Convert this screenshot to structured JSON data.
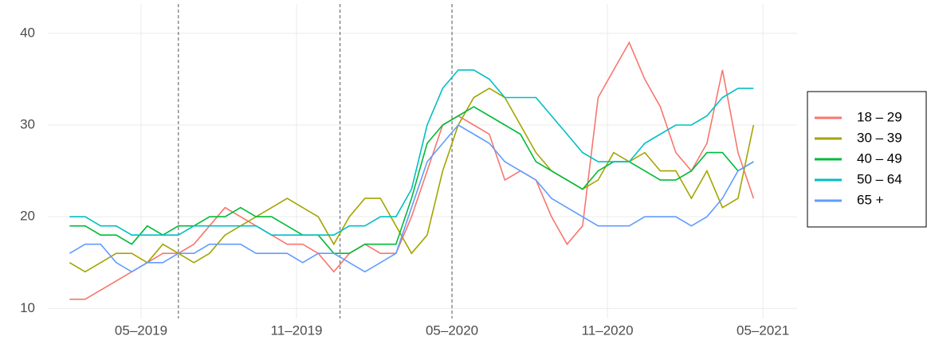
{
  "chart_data": {
    "type": "line",
    "x": [
      2019.1,
      2019.15,
      2019.2,
      2019.25,
      2019.3,
      2019.35,
      2019.4,
      2019.45,
      2019.5,
      2019.55,
      2019.6,
      2019.65,
      2019.7,
      2019.75,
      2019.8,
      2019.85,
      2019.9,
      2019.95,
      2020.0,
      2020.05,
      2020.1,
      2020.15,
      2020.2,
      2020.25,
      2020.3,
      2020.35,
      2020.4,
      2020.45,
      2020.5,
      2020.55,
      2020.6,
      2020.65,
      2020.7,
      2020.75,
      2020.8,
      2020.85,
      2020.9,
      2020.95,
      2021.0,
      2021.05,
      2021.1,
      2021.15,
      2021.2,
      2021.25,
      2021.3
    ],
    "series": [
      {
        "name": "18 – 29",
        "color": "#F8766D",
        "values": [
          11,
          11,
          12,
          13,
          14,
          15,
          16,
          16,
          17,
          19,
          21,
          20,
          19,
          18,
          17,
          17,
          16,
          14,
          16,
          17,
          16,
          16,
          20,
          25,
          30,
          31,
          30,
          29,
          24,
          25,
          24,
          20,
          17,
          19,
          33,
          36,
          39,
          35,
          32,
          27,
          25,
          28,
          36,
          27,
          22
        ]
      },
      {
        "name": "30 – 39",
        "color": "#A3A500",
        "values": [
          15,
          14,
          15,
          16,
          16,
          15,
          17,
          16,
          15,
          16,
          18,
          19,
          20,
          21,
          22,
          21,
          20,
          17,
          20,
          22,
          22,
          19,
          16,
          18,
          25,
          30,
          33,
          34,
          33,
          30,
          27,
          25,
          24,
          23,
          24,
          27,
          26,
          27,
          25,
          25,
          22,
          25,
          21,
          22,
          30
        ]
      },
      {
        "name": "40 – 49",
        "color": "#00BA38",
        "values": [
          19,
          19,
          18,
          18,
          17,
          19,
          18,
          19,
          19,
          20,
          20,
          21,
          20,
          20,
          19,
          18,
          18,
          16,
          16,
          17,
          17,
          17,
          22,
          28,
          30,
          31,
          32,
          31,
          30,
          29,
          26,
          25,
          24,
          23,
          25,
          26,
          26,
          25,
          24,
          24,
          25,
          27,
          27,
          25,
          26
        ]
      },
      {
        "name": "50 – 64",
        "color": "#00BFC4",
        "values": [
          20,
          20,
          19,
          19,
          18,
          18,
          18,
          18,
          19,
          19,
          19,
          19,
          19,
          18,
          18,
          18,
          18,
          18,
          19,
          19,
          20,
          20,
          23,
          30,
          34,
          36,
          36,
          35,
          33,
          33,
          33,
          31,
          29,
          27,
          26,
          26,
          26,
          28,
          29,
          30,
          30,
          31,
          33,
          34,
          34
        ]
      },
      {
        "name": "65 +",
        "color": "#619CFF",
        "values": [
          16,
          17,
          17,
          15,
          14,
          15,
          15,
          16,
          16,
          17,
          17,
          17,
          16,
          16,
          16,
          15,
          16,
          16,
          15,
          14,
          15,
          16,
          21,
          26,
          28,
          30,
          29,
          28,
          26,
          25,
          24,
          22,
          21,
          20,
          19,
          19,
          19,
          20,
          20,
          20,
          19,
          20,
          22,
          25,
          26
        ]
      }
    ],
    "vlines": [
      2019.45,
      2019.97,
      2020.33
    ],
    "xlim": [
      2019.03,
      2021.44
    ],
    "xticks": [
      {
        "value": 2019.33,
        "label": "05–2019"
      },
      {
        "value": 2019.83,
        "label": "11–2019"
      },
      {
        "value": 2020.33,
        "label": "05–2020"
      },
      {
        "value": 2020.83,
        "label": "11–2020"
      },
      {
        "value": 2021.33,
        "label": "05–2021"
      }
    ],
    "ylim": [
      8.9,
      43.2
    ],
    "yticks": [
      10,
      20,
      30,
      40
    ],
    "grid": true
  }
}
